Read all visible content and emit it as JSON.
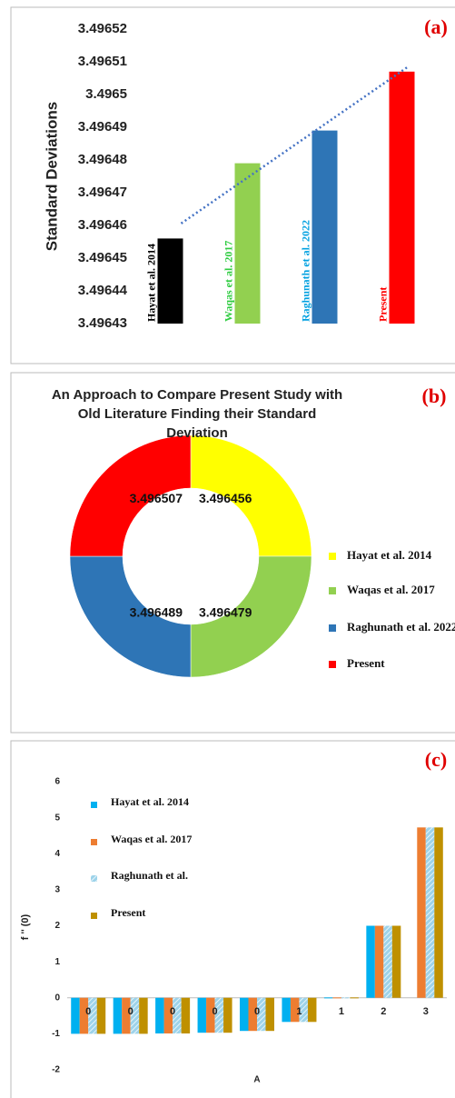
{
  "chart_data": [
    {
      "type": "bar",
      "label": "(a)",
      "ylabel": "Standard Deviations",
      "categories": [
        "Hayat et al. 2014",
        "Waqas et al. 2017",
        "Raghunath et al. 2022",
        "Present"
      ],
      "values": [
        3.496456,
        3.496479,
        3.496489,
        3.496507
      ],
      "colors": [
        "#000000",
        "#92d050",
        "#2e75b6",
        "#ff0000"
      ],
      "label_colors": [
        "#000000",
        "#2ecc40",
        "#00a0e0",
        "#ff0000"
      ],
      "ylim": [
        3.49643,
        3.49652
      ],
      "yticks": [
        3.49643,
        3.49644,
        3.49645,
        3.49646,
        3.49647,
        3.49648,
        3.49649,
        3.4965,
        3.49651,
        3.49652
      ],
      "trendline": {
        "color": "#4472c4",
        "style": "dotted"
      }
    },
    {
      "type": "pie",
      "label": "(b)",
      "donut": true,
      "legend": "right",
      "title": "An Approach to Compare Present Study with Old Literature Finding their Standard Deviation",
      "categories": [
        "Hayat et al. 2014",
        "Waqas et al. 2017",
        "Raghunath et al. 2022",
        "Present"
      ],
      "values": [
        3.496456,
        3.496479,
        3.496489,
        3.496507
      ],
      "colors": [
        "#ffff00",
        "#92d050",
        "#2e75b6",
        "#ff0000"
      ]
    },
    {
      "type": "bar",
      "label": "(c)",
      "xlabel": "A",
      "ylabel": "f '' (0)",
      "legend": "upper left",
      "categories": [
        "0",
        "0",
        "0",
        "0",
        "0",
        "1",
        "1",
        "2",
        "3"
      ],
      "series": [
        {
          "name": "Hayat et al. 2014",
          "color": "#00b0f0",
          "values": [
            -1.0,
            -1.0,
            -0.99,
            -0.97,
            -0.92,
            -0.67,
            0.01,
            2.0,
            null
          ]
        },
        {
          "name": "Waqas et al. 2017",
          "color": "#ed7d31",
          "values": [
            -1.0,
            -1.0,
            -0.99,
            -0.97,
            -0.92,
            -0.67,
            0.01,
            2.0,
            4.73
          ]
        },
        {
          "name": "Raghunath et al.",
          "color": "#9dd3ea",
          "pattern": "hatch",
          "values": [
            -1.0,
            -1.0,
            -0.99,
            -0.97,
            -0.92,
            -0.67,
            0.01,
            2.0,
            4.73
          ]
        },
        {
          "name": "Present",
          "color": "#bf9000",
          "values": [
            -1.0,
            -1.0,
            -0.99,
            -0.97,
            -0.92,
            -0.67,
            0.01,
            2.0,
            4.73
          ]
        }
      ],
      "ylim": [
        -2,
        6
      ],
      "yticks": [
        -2,
        -1,
        0,
        1,
        2,
        3,
        4,
        5,
        6
      ]
    }
  ]
}
